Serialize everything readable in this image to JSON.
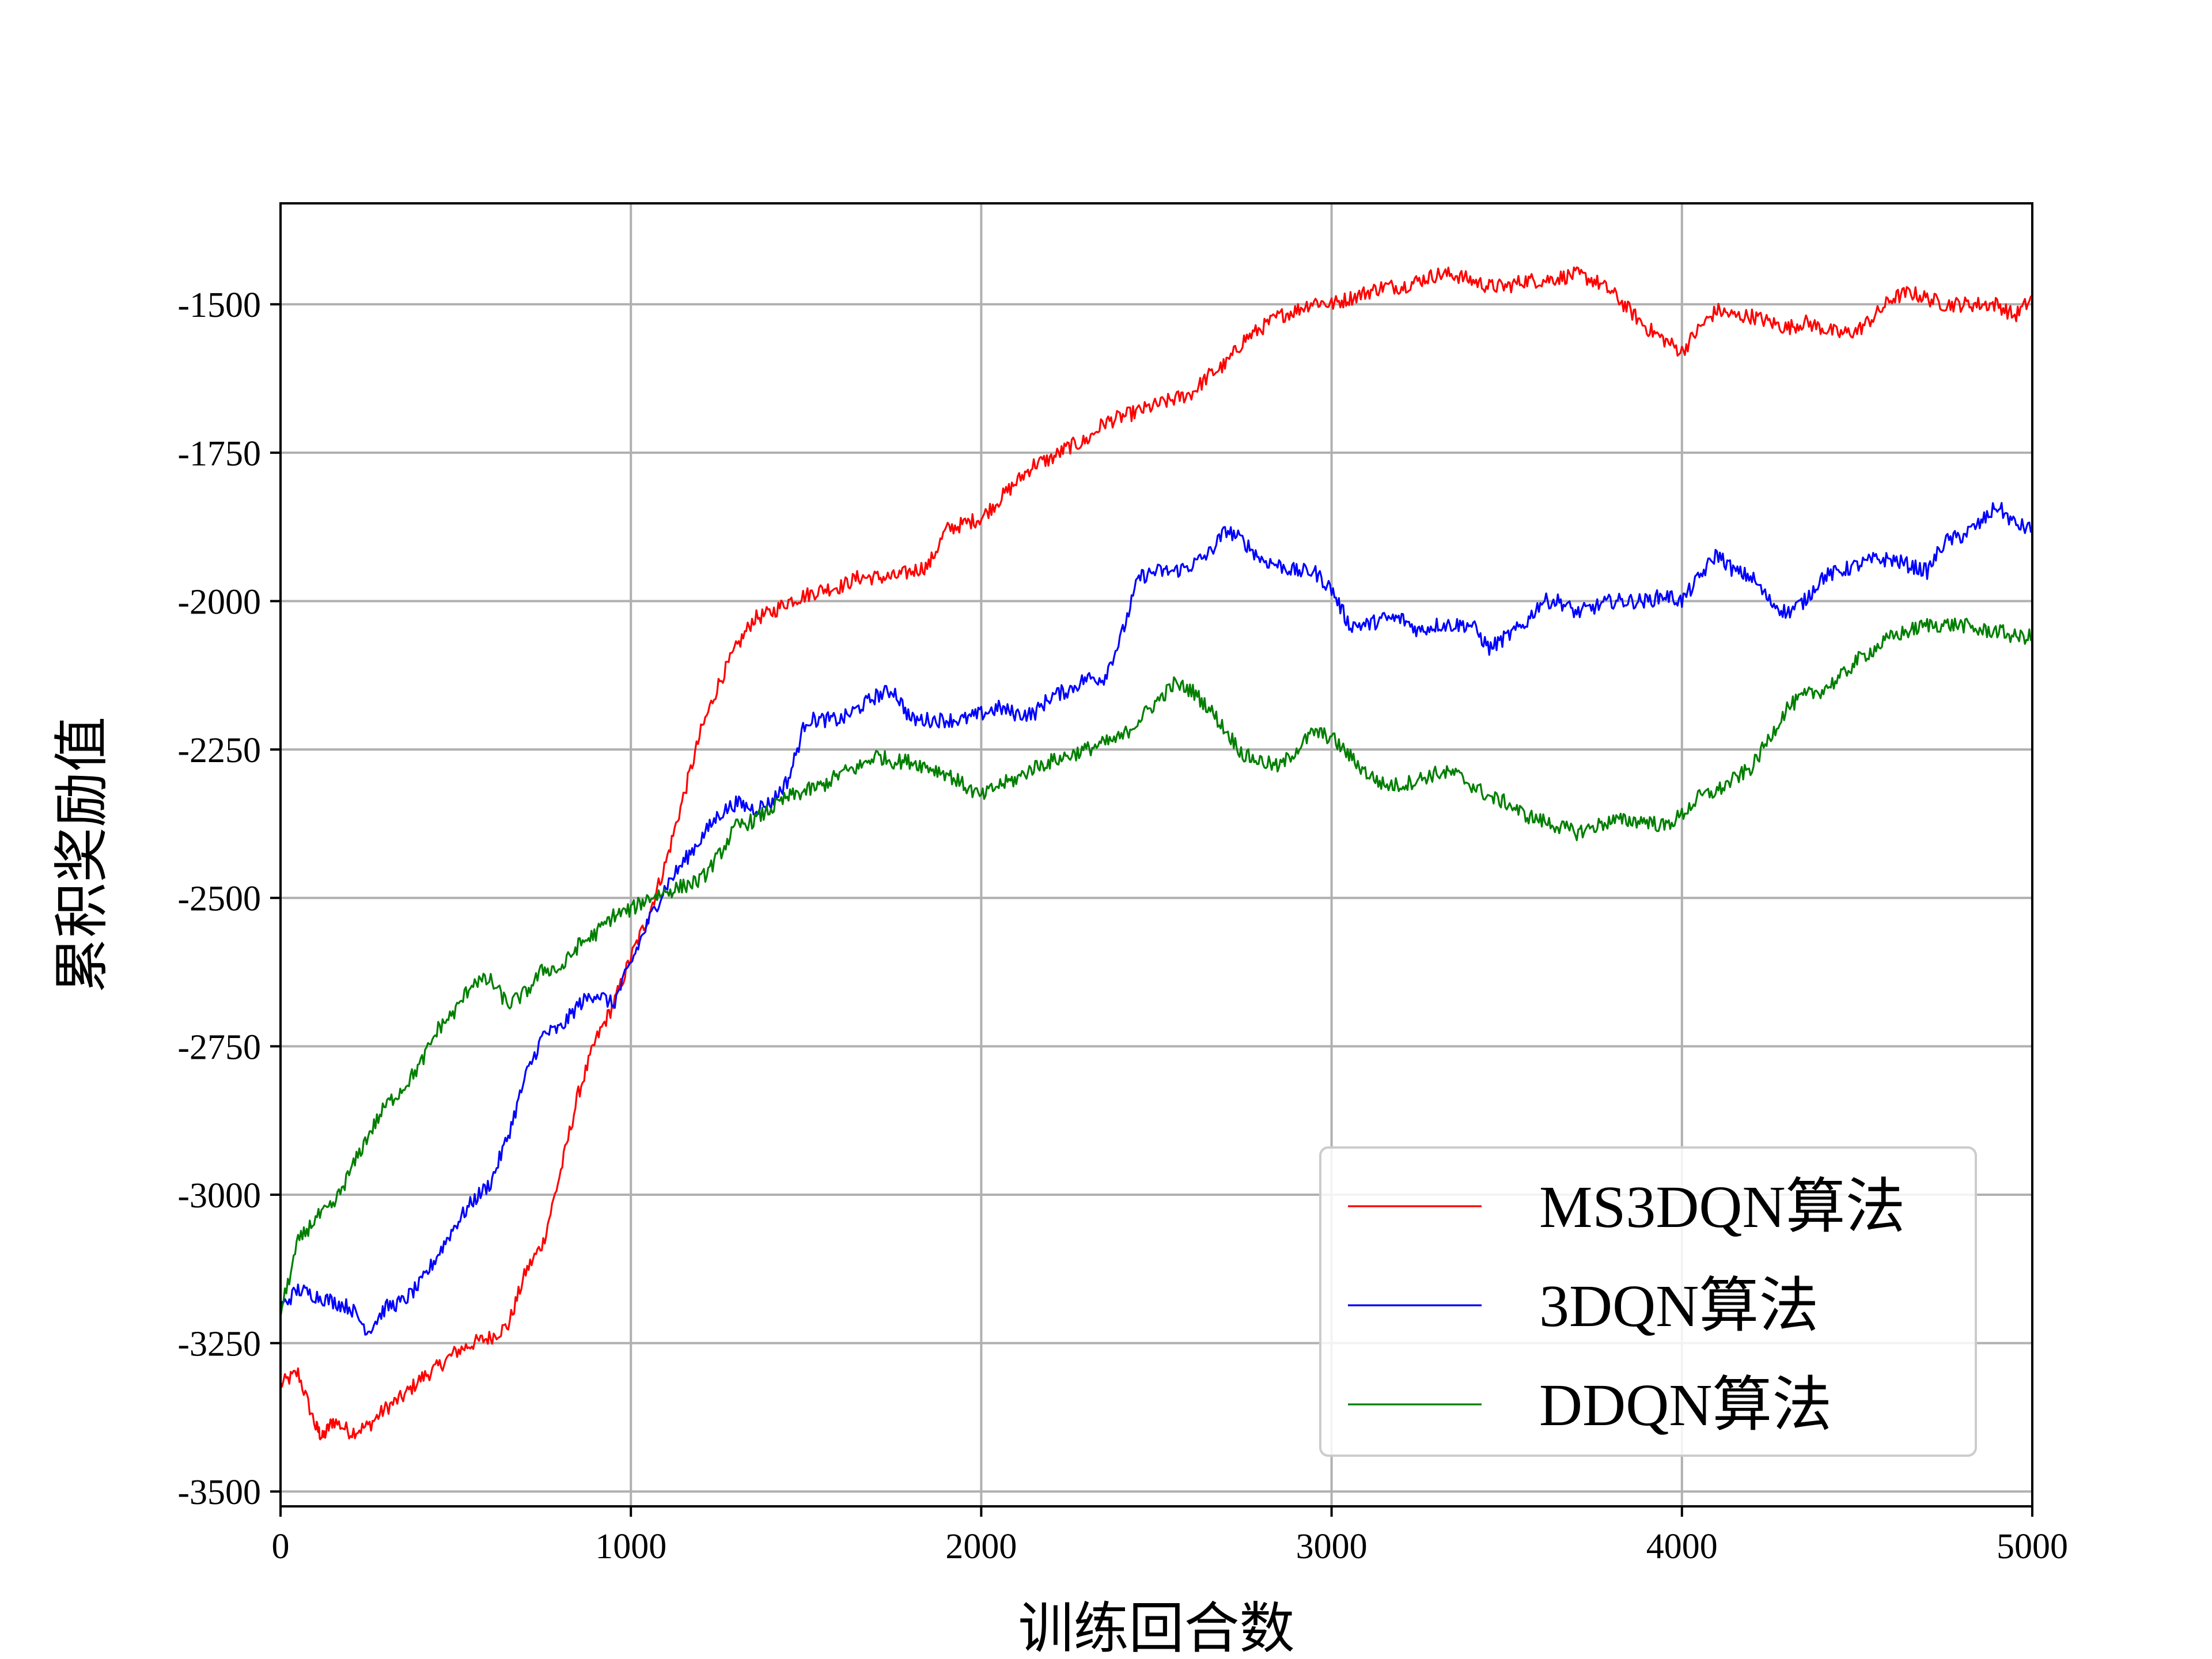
{
  "chart_data": {
    "type": "line",
    "title": "",
    "xlabel": "训练回合数",
    "ylabel": "累积奖励值",
    "xlim": [
      0,
      5000
    ],
    "ylim": [
      -3525,
      -1330
    ],
    "xticks": [
      0,
      1000,
      2000,
      3000,
      4000,
      5000
    ],
    "yticks": [
      -3500,
      -3250,
      -3000,
      -2750,
      -2500,
      -2250,
      -2000,
      -1750,
      -1500
    ],
    "xtick_labels": [
      "0",
      "1000",
      "2000",
      "3000",
      "4000",
      "5000"
    ],
    "ytick_labels": [
      "-3500",
      "-3250",
      "-3000",
      "-2750",
      "-2500",
      "-2250",
      "-2000",
      "-1750",
      "-1500"
    ],
    "grid": true,
    "legend_position": "lower-right",
    "series": [
      {
        "name": "MS3DQN算法",
        "color": "#ff0000",
        "x": [
          0,
          50,
          100,
          120,
          150,
          200,
          250,
          300,
          350,
          400,
          450,
          500,
          550,
          600,
          650,
          700,
          750,
          800,
          850,
          900,
          950,
          1000,
          1050,
          1100,
          1150,
          1200,
          1250,
          1300,
          1350,
          1400,
          1450,
          1500,
          1550,
          1600,
          1650,
          1700,
          1750,
          1800,
          1850,
          1900,
          1950,
          2000,
          2050,
          2100,
          2150,
          2200,
          2250,
          2300,
          2350,
          2400,
          2450,
          2500,
          2550,
          2600,
          2650,
          2700,
          2750,
          2800,
          2850,
          2900,
          2950,
          3000,
          3050,
          3100,
          3150,
          3200,
          3250,
          3300,
          3350,
          3400,
          3450,
          3500,
          3550,
          3600,
          3650,
          3700,
          3750,
          3800,
          3850,
          3900,
          3950,
          4000,
          4050,
          4100,
          4150,
          4200,
          4250,
          4300,
          4350,
          4400,
          4450,
          4500,
          4550,
          4600,
          4650,
          4700,
          4750,
          4800,
          4850,
          4900,
          4950,
          5000
        ],
        "values": [
          -3320,
          -3300,
          -3390,
          -3410,
          -3380,
          -3400,
          -3390,
          -3360,
          -3340,
          -3310,
          -3290,
          -3265,
          -3250,
          -3240,
          -3220,
          -3130,
          -3080,
          -2960,
          -2830,
          -2740,
          -2680,
          -2600,
          -2530,
          -2440,
          -2330,
          -2220,
          -2140,
          -2080,
          -2030,
          -2020,
          -2000,
          -1990,
          -1980,
          -1975,
          -1960,
          -1960,
          -1960,
          -1950,
          -1940,
          -1880,
          -1870,
          -1860,
          -1830,
          -1800,
          -1770,
          -1760,
          -1740,
          -1730,
          -1700,
          -1690,
          -1680,
          -1670,
          -1660,
          -1650,
          -1620,
          -1600,
          -1560,
          -1540,
          -1520,
          -1510,
          -1495,
          -1500,
          -1490,
          -1480,
          -1470,
          -1470,
          -1460,
          -1450,
          -1450,
          -1460,
          -1470,
          -1470,
          -1460,
          -1460,
          -1455,
          -1450,
          -1460,
          -1480,
          -1510,
          -1540,
          -1560,
          -1580,
          -1540,
          -1510,
          -1520,
          -1520,
          -1530,
          -1540,
          -1530,
          -1540,
          -1550,
          -1545,
          -1520,
          -1490,
          -1480,
          -1490,
          -1500,
          -1500,
          -1500,
          -1500,
          -1520,
          -1490
        ]
      },
      {
        "name": "3DQN算法",
        "color": "#0000ff",
        "x": [
          0,
          50,
          100,
          150,
          200,
          250,
          300,
          350,
          400,
          450,
          500,
          550,
          600,
          650,
          700,
          750,
          800,
          850,
          900,
          950,
          1000,
          1050,
          1100,
          1150,
          1200,
          1250,
          1300,
          1350,
          1400,
          1450,
          1500,
          1550,
          1600,
          1650,
          1700,
          1750,
          1800,
          1850,
          1900,
          1950,
          2000,
          2050,
          2100,
          2150,
          2200,
          2250,
          2300,
          2350,
          2400,
          2450,
          2500,
          2550,
          2600,
          2650,
          2700,
          2750,
          2800,
          2850,
          2900,
          2950,
          3000,
          3050,
          3100,
          3150,
          3200,
          3250,
          3300,
          3350,
          3400,
          3450,
          3500,
          3550,
          3600,
          3650,
          3700,
          3750,
          3800,
          3850,
          3900,
          3950,
          4000,
          4050,
          4100,
          4150,
          4200,
          4250,
          4300,
          4350,
          4400,
          4450,
          4500,
          4550,
          4600,
          4650,
          4700,
          4750,
          4800,
          4850,
          4900,
          4950,
          5000
        ],
        "values": [
          -3190,
          -3160,
          -3170,
          -3180,
          -3190,
          -3230,
          -3190,
          -3180,
          -3150,
          -3100,
          -3050,
          -3010,
          -2980,
          -2900,
          -2800,
          -2730,
          -2720,
          -2680,
          -2660,
          -2680,
          -2610,
          -2540,
          -2480,
          -2440,
          -2400,
          -2360,
          -2340,
          -2350,
          -2340,
          -2300,
          -2200,
          -2200,
          -2200,
          -2180,
          -2160,
          -2150,
          -2200,
          -2200,
          -2200,
          -2200,
          -2190,
          -2180,
          -2190,
          -2190,
          -2160,
          -2150,
          -2130,
          -2130,
          -2060,
          -1960,
          -1950,
          -1950,
          -1940,
          -1920,
          -1880,
          -1900,
          -1930,
          -1940,
          -1950,
          -1950,
          -1980,
          -2040,
          -2040,
          -2030,
          -2030,
          -2050,
          -2040,
          -2040,
          -2040,
          -2080,
          -2060,
          -2040,
          -2000,
          -2000,
          -2020,
          -2010,
          -2000,
          -2000,
          -2000,
          -1990,
          -2000,
          -1960,
          -1920,
          -1950,
          -1960,
          -2000,
          -2020,
          -2000,
          -1960,
          -1950,
          -1940,
          -1930,
          -1930,
          -1940,
          -1950,
          -1900,
          -1890,
          -1870,
          -1840,
          -1870,
          -1880
        ]
      },
      {
        "name": "DDQN算法",
        "color": "#007f00",
        "x": [
          0,
          50,
          100,
          150,
          200,
          250,
          300,
          350,
          400,
          450,
          500,
          550,
          600,
          650,
          700,
          750,
          800,
          850,
          900,
          950,
          1000,
          1050,
          1100,
          1150,
          1200,
          1250,
          1300,
          1350,
          1400,
          1450,
          1500,
          1550,
          1600,
          1650,
          1700,
          1750,
          1800,
          1850,
          1900,
          1950,
          2000,
          2050,
          2100,
          2150,
          2200,
          2250,
          2300,
          2350,
          2400,
          2450,
          2500,
          2550,
          2600,
          2650,
          2700,
          2750,
          2800,
          2850,
          2900,
          2950,
          3000,
          3050,
          3100,
          3150,
          3200,
          3250,
          3300,
          3350,
          3400,
          3450,
          3500,
          3550,
          3600,
          3650,
          3700,
          3750,
          3800,
          3850,
          3900,
          3950,
          4000,
          4050,
          4100,
          4150,
          4200,
          4250,
          4300,
          4350,
          4400,
          4450,
          4500,
          4550,
          4600,
          4650,
          4700,
          4750,
          4800,
          4850,
          4900,
          4950,
          5000
        ],
        "values": [
          -3200,
          -3080,
          -3040,
          -3020,
          -2960,
          -2900,
          -2850,
          -2820,
          -2780,
          -2720,
          -2690,
          -2640,
          -2640,
          -2680,
          -2660,
          -2620,
          -2620,
          -2580,
          -2560,
          -2530,
          -2520,
          -2500,
          -2490,
          -2480,
          -2470,
          -2430,
          -2380,
          -2370,
          -2350,
          -2330,
          -2320,
          -2310,
          -2290,
          -2280,
          -2260,
          -2270,
          -2270,
          -2280,
          -2290,
          -2310,
          -2330,
          -2310,
          -2300,
          -2280,
          -2270,
          -2260,
          -2250,
          -2240,
          -2230,
          -2200,
          -2170,
          -2140,
          -2150,
          -2180,
          -2220,
          -2260,
          -2270,
          -2280,
          -2250,
          -2220,
          -2230,
          -2260,
          -2290,
          -2310,
          -2310,
          -2300,
          -2290,
          -2290,
          -2310,
          -2330,
          -2340,
          -2360,
          -2370,
          -2380,
          -2390,
          -2380,
          -2370,
          -2370,
          -2370,
          -2380,
          -2360,
          -2330,
          -2320,
          -2300,
          -2280,
          -2230,
          -2180,
          -2160,
          -2150,
          -2130,
          -2100,
          -2080,
          -2060,
          -2050,
          -2040,
          -2040,
          -2040,
          -2050,
          -2050,
          -2060,
          -2060
        ]
      }
    ]
  }
}
